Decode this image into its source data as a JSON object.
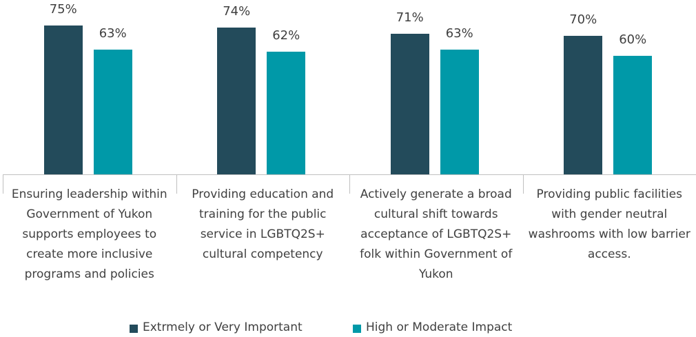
{
  "chart_data": {
    "type": "bar",
    "categories": [
      "Ensuring leadership within Government of Yukon supports employees to create more inclusive programs and policies",
      "Providing education and training for the public service in LGBTQ2S+ cultural competency",
      "Actively generate a broad cultural shift towards acceptance of LGBTQ2S+ folk within Government of Yukon",
      "Providing public facilities with gender neutral washrooms with low barrier access."
    ],
    "series": [
      {
        "name": "Extrmely or Very Important",
        "color": "#234b5b",
        "values": [
          75,
          74,
          71,
          70
        ],
        "value_labels": [
          "75%",
          "74%",
          "71%",
          "70%"
        ]
      },
      {
        "name": "High or Moderate Impact",
        "color": "#0099a8",
        "values": [
          63,
          62,
          63,
          60
        ],
        "value_labels": [
          "63%",
          "62%",
          "63%",
          "60%"
        ]
      }
    ],
    "ylim": [
      0,
      88
    ],
    "legend": "bottom"
  }
}
